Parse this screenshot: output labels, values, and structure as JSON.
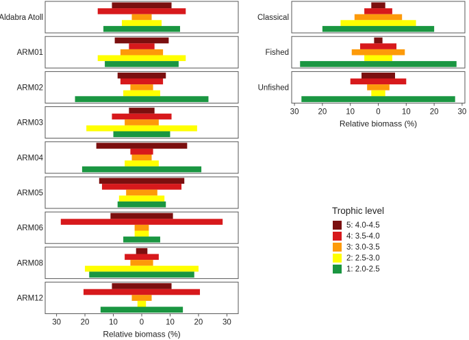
{
  "chart_data": [
    {
      "type": "bar",
      "subtype": "population-pyramid",
      "xlabel": "Relative biomass (%)",
      "xlim": [
        -34,
        34
      ],
      "ticks": [
        -30,
        -20,
        -10,
        0,
        10,
        20,
        30
      ],
      "tick_labels": [
        "30",
        "20",
        "10",
        "0",
        "10",
        "20",
        "30"
      ],
      "series_order": [
        "5",
        "4",
        "3",
        "2",
        "1"
      ],
      "categories": [
        "Aldabra Atoll",
        "ARM01",
        "ARM02",
        "ARM03",
        "ARM04",
        "ARM05",
        "ARM06",
        "ARM08",
        "ARM12"
      ],
      "values": {
        "Aldabra Atoll": [
          10.5,
          15.5,
          3.5,
          7.0,
          13.5
        ],
        "ARM01": [
          9.5,
          4.5,
          7.5,
          15.5,
          13.0
        ],
        "ARM02": [
          8.5,
          7.5,
          4.0,
          6.5,
          23.5
        ],
        "ARM03": [
          4.5,
          10.5,
          6.0,
          19.5,
          10.0
        ],
        "ARM04": [
          16.0,
          4.0,
          3.5,
          6.0,
          21.0
        ],
        "ARM05": [
          15.0,
          14.0,
          5.5,
          8.0,
          8.5
        ],
        "ARM06": [
          11.0,
          28.5,
          2.5,
          2.5,
          6.5
        ],
        "ARM08": [
          2.0,
          6.0,
          4.0,
          20.0,
          18.5
        ],
        "ARM12": [
          10.5,
          20.5,
          3.5,
          1.5,
          14.5
        ]
      }
    },
    {
      "type": "bar",
      "subtype": "population-pyramid",
      "xlabel": "Relative biomass (%)",
      "xlim": [
        -31,
        31
      ],
      "ticks": [
        -30,
        -20,
        -10,
        0,
        10,
        20,
        30
      ],
      "tick_labels": [
        "30",
        "20",
        "10",
        "0",
        "10",
        "20",
        "30"
      ],
      "series_order": [
        "5",
        "4",
        "3",
        "2",
        "1"
      ],
      "categories": [
        "Classical",
        "Fished",
        "Unfished"
      ],
      "values": {
        "Classical": [
          2.5,
          5.0,
          8.5,
          13.5,
          20.0
        ],
        "Fished": [
          1.5,
          6.5,
          9.5,
          5.0,
          28.0
        ],
        "Unfished": [
          6.0,
          10.0,
          4.0,
          2.5,
          27.5
        ]
      }
    }
  ],
  "legend": {
    "title": "Trophic level",
    "items": [
      {
        "key": "5",
        "label": "5: 4.0-4.5",
        "color": "#7b0f0f"
      },
      {
        "key": "4",
        "label": "4: 3.5-4.0",
        "color": "#d7191c"
      },
      {
        "key": "3",
        "label": "3: 3.0-3.5",
        "color": "#fd9a0a"
      },
      {
        "key": "2",
        "label": "2: 2.5-3.0",
        "color": "#ffff00"
      },
      {
        "key": "1",
        "label": "1: 2.0-2.5",
        "color": "#1a9641"
      }
    ]
  }
}
